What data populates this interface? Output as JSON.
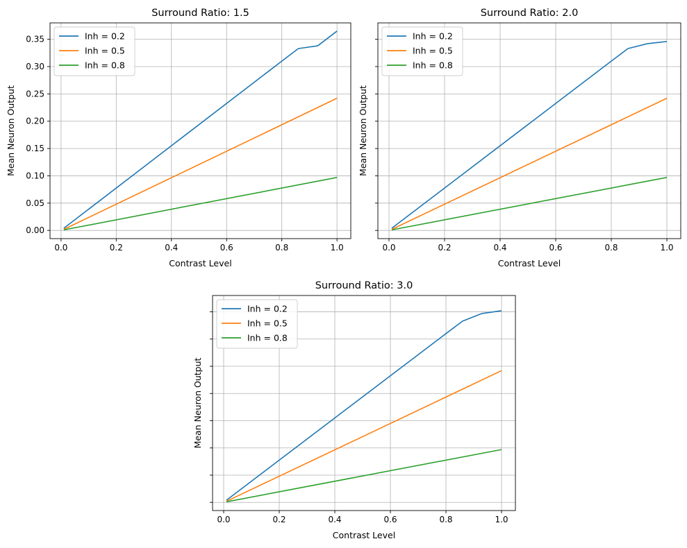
{
  "colors": {
    "series": [
      "#1f77b4",
      "#ff7f0e",
      "#2ca02c"
    ],
    "grid": "#b0b0b0",
    "axis": "#000000"
  },
  "chart_data": [
    {
      "type": "line",
      "title": "Surround Ratio: 1.5",
      "xlabel": "Contrast Level",
      "ylabel": "Mean Neuron Output",
      "xlim": [
        -0.04,
        1.05
      ],
      "ylim": [
        -0.015,
        0.38
      ],
      "xticks": [
        0.0,
        0.2,
        0.4,
        0.6,
        0.8,
        1.0
      ],
      "xtick_labels": [
        "0.0",
        "0.2",
        "0.4",
        "0.6",
        "0.8",
        "1.0"
      ],
      "yticks": [
        0.0,
        0.05,
        0.1,
        0.15,
        0.2,
        0.25,
        0.3,
        0.35
      ],
      "ytick_labels": [
        "0.00",
        "0.05",
        "0.10",
        "0.15",
        "0.20",
        "0.25",
        "0.30",
        "0.35"
      ],
      "grid": true,
      "legend": "top-left",
      "series": [
        {
          "name": "Inh = 0.2",
          "x": [
            0.01,
            0.8,
            0.86,
            0.93,
            1.0
          ],
          "y": [
            0.004,
            0.31,
            0.333,
            0.338,
            0.365
          ]
        },
        {
          "name": "Inh = 0.5",
          "x": [
            0.01,
            1.0
          ],
          "y": [
            0.002,
            0.242
          ]
        },
        {
          "name": "Inh = 0.8",
          "x": [
            0.01,
            1.0
          ],
          "y": [
            0.001,
            0.097
          ]
        }
      ]
    },
    {
      "type": "line",
      "title": "Surround Ratio: 2.0",
      "xlabel": "Contrast Level",
      "ylabel": "Mean Neuron Output",
      "xlim": [
        -0.04,
        1.05
      ],
      "ylim": [
        -0.015,
        0.38
      ],
      "xticks": [
        0.0,
        0.2,
        0.4,
        0.6,
        0.8,
        1.0
      ],
      "xtick_labels": [
        "0.0",
        "0.2",
        "0.4",
        "0.6",
        "0.8",
        "1.0"
      ],
      "yticks": [
        0.0,
        0.05,
        0.1,
        0.15,
        0.2,
        0.25,
        0.3,
        0.35
      ],
      "ytick_labels": [],
      "grid": true,
      "legend": "top-left",
      "series": [
        {
          "name": "Inh = 0.2",
          "x": [
            0.01,
            0.8,
            0.86,
            0.93,
            1.0
          ],
          "y": [
            0.004,
            0.31,
            0.333,
            0.342,
            0.346
          ]
        },
        {
          "name": "Inh = 0.5",
          "x": [
            0.01,
            1.0
          ],
          "y": [
            0.002,
            0.242
          ]
        },
        {
          "name": "Inh = 0.8",
          "x": [
            0.01,
            1.0
          ],
          "y": [
            0.001,
            0.097
          ]
        }
      ]
    },
    {
      "type": "line",
      "title": "Surround Ratio: 3.0",
      "xlabel": "Contrast Level",
      "ylabel": "Mean Neuron Output",
      "xlim": [
        -0.04,
        1.05
      ],
      "ylim": [
        -0.015,
        0.38
      ],
      "xticks": [
        0.0,
        0.2,
        0.4,
        0.6,
        0.8,
        1.0
      ],
      "xtick_labels": [
        "0.0",
        "0.2",
        "0.4",
        "0.6",
        "0.8",
        "1.0"
      ],
      "yticks": [
        0.0,
        0.05,
        0.1,
        0.15,
        0.2,
        0.25,
        0.3,
        0.35
      ],
      "ytick_labels": [],
      "grid": true,
      "legend": "top-left",
      "series": [
        {
          "name": "Inh = 0.2",
          "x": [
            0.01,
            0.8,
            0.86,
            0.93,
            1.0
          ],
          "y": [
            0.004,
            0.31,
            0.333,
            0.347,
            0.352
          ]
        },
        {
          "name": "Inh = 0.5",
          "x": [
            0.01,
            1.0
          ],
          "y": [
            0.002,
            0.242
          ]
        },
        {
          "name": "Inh = 0.8",
          "x": [
            0.01,
            1.0
          ],
          "y": [
            0.001,
            0.097
          ]
        }
      ]
    }
  ]
}
